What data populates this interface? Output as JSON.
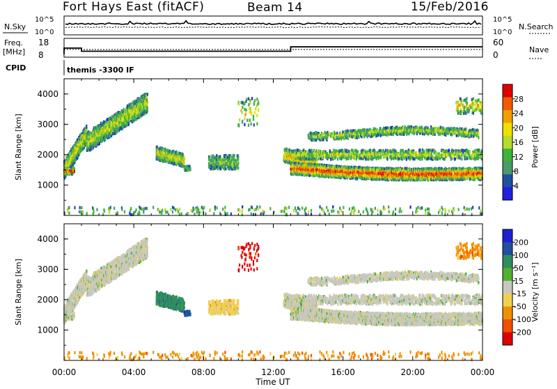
{
  "header": {
    "station": "Fort Hays East (fitACF)",
    "beam": "Beam 14",
    "date": "15/Feb/2016"
  },
  "panels": {
    "nsky_label": "N.Sky",
    "nsky_ticks": [
      "10^5",
      "10^0"
    ],
    "nsearch_label": "N.Search",
    "nsearch_ticks": [
      "10^5",
      "10^0"
    ],
    "freq_label": "Freq.",
    "freq_unit": "[MHz]",
    "freq_ticks": [
      "18",
      "8"
    ],
    "nave_label": "Nave",
    "nave_ticks": [
      "60",
      "0"
    ],
    "cpid_label": "CPID",
    "cpid_text": "themis -3300 IF"
  },
  "colors": {
    "power": [
      "#2020e0",
      "#2050a0",
      "#4a9a6a",
      "#3cb43c",
      "#b4dc2c",
      "#f0e000",
      "#f0a000",
      "#f05a00",
      "#e00000"
    ],
    "velocity": [
      "#e00000",
      "#f05000",
      "#f09000",
      "#f0d050",
      "#c8c8c0",
      "#50b030",
      "#2e8e60",
      "#2050a0",
      "#2020d0"
    ]
  },
  "chart_data": [
    {
      "type": "heatmap",
      "ylabel": "Slant Range [km]",
      "y_ticks": [
        "4000",
        "3000",
        "2000",
        "1000"
      ],
      "ylim": [
        0,
        4500
      ],
      "xlim": [
        "00:00",
        "24:00"
      ],
      "colorbar": {
        "label": "Power [dB]",
        "ticks": [
          "28",
          "24",
          "20",
          "16",
          "12",
          "8",
          "4"
        ]
      }
    },
    {
      "type": "heatmap",
      "ylabel": "Slant Range [km]",
      "y_ticks": [
        "4000",
        "3000",
        "2000",
        "1000"
      ],
      "ylim": [
        0,
        4500
      ],
      "xlabel": "Time UT",
      "x_ticks": [
        "00:00",
        "04:00",
        "08:00",
        "12:00",
        "16:00",
        "20:00",
        "00:00"
      ],
      "xlim": [
        "00:00",
        "24:00"
      ],
      "colorbar": {
        "label": "Velocity [m s⁻¹]",
        "ticks": [
          "200",
          "100",
          "50",
          "15",
          "-15",
          "-50",
          "-100",
          "-200"
        ]
      }
    }
  ]
}
